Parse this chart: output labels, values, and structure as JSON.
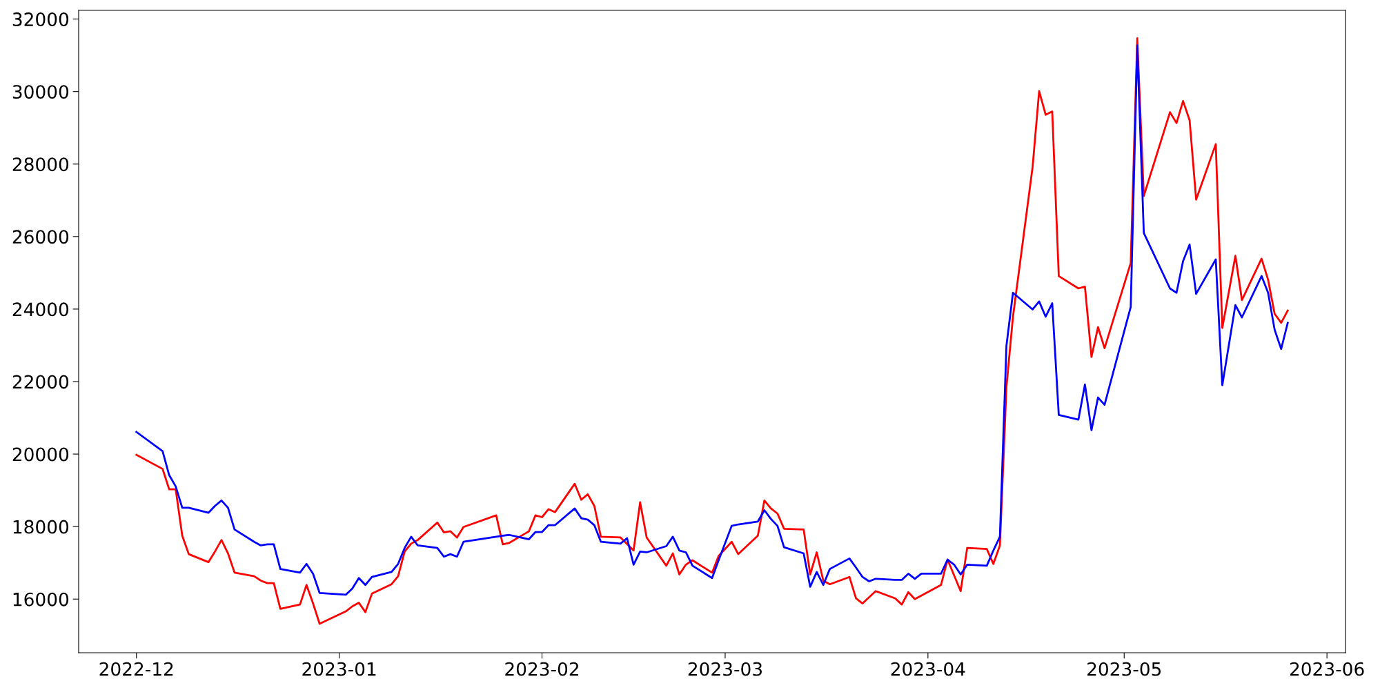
{
  "chart_data": {
    "type": "line",
    "xlim": [
      "2022-11-22T04:00",
      "2023-06-03T20:00"
    ],
    "ylim": [
      14520,
      32240
    ],
    "xticks": [
      "2022-12",
      "2023-01",
      "2023-02",
      "2023-03",
      "2023-04",
      "2023-05",
      "2023-06"
    ],
    "yticks": [
      16000,
      18000,
      20000,
      22000,
      24000,
      26000,
      28000,
      30000,
      32000
    ],
    "grid": false,
    "marker": "none",
    "line_style": "solid",
    "series": [
      {
        "color": "#0000ff",
        "x": [
          "2022-12-01",
          "2022-12-05",
          "2022-12-06",
          "2022-12-07",
          "2022-12-08",
          "2022-12-09",
          "2022-12-12",
          "2022-12-13",
          "2022-12-14",
          "2022-12-15",
          "2022-12-16",
          "2022-12-19",
          "2022-12-20",
          "2022-12-21",
          "2022-12-22",
          "2022-12-23",
          "2022-12-26",
          "2022-12-27",
          "2022-12-28",
          "2022-12-29",
          "2023-01-02",
          "2023-01-03",
          "2023-01-04",
          "2023-01-05",
          "2023-01-06",
          "2023-01-09",
          "2023-01-10",
          "2023-01-11",
          "2023-01-12",
          "2023-01-13",
          "2023-01-16",
          "2023-01-17",
          "2023-01-18",
          "2023-01-19",
          "2023-01-20",
          "2023-01-25",
          "2023-01-26",
          "2023-01-27",
          "2023-01-30",
          "2023-01-31",
          "2023-02-01",
          "2023-02-02",
          "2023-02-03",
          "2023-02-06",
          "2023-02-07",
          "2023-02-08",
          "2023-02-09",
          "2023-02-10",
          "2023-02-13",
          "2023-02-14",
          "2023-02-15",
          "2023-02-16",
          "2023-02-17",
          "2023-02-20",
          "2023-02-21",
          "2023-02-22",
          "2023-02-23",
          "2023-02-24",
          "2023-02-27",
          "2023-02-28",
          "2023-03-02",
          "2023-03-03",
          "2023-03-06",
          "2023-03-07",
          "2023-03-08",
          "2023-03-09",
          "2023-03-10",
          "2023-03-13",
          "2023-03-14",
          "2023-03-15",
          "2023-03-16",
          "2023-03-17",
          "2023-03-20",
          "2023-03-21",
          "2023-03-22",
          "2023-03-23",
          "2023-03-24",
          "2023-03-27",
          "2023-03-28",
          "2023-03-29",
          "2023-03-30",
          "2023-03-31",
          "2023-04-03",
          "2023-04-04",
          "2023-04-05",
          "2023-04-06",
          "2023-04-07",
          "2023-04-10",
          "2023-04-11",
          "2023-04-12",
          "2023-04-13",
          "2023-04-14",
          "2023-04-17",
          "2023-04-18",
          "2023-04-19",
          "2023-04-20",
          "2023-04-21",
          "2023-04-24",
          "2023-04-25",
          "2023-04-26",
          "2023-04-27",
          "2023-04-28",
          "2023-05-02",
          "2023-05-03",
          "2023-05-04",
          "2023-05-08",
          "2023-05-09",
          "2023-05-10",
          "2023-05-11",
          "2023-05-12",
          "2023-05-15",
          "2023-05-16",
          "2023-05-18",
          "2023-05-19",
          "2023-05-22",
          "2023-05-23",
          "2023-05-24",
          "2023-05-25",
          "2023-05-26"
        ],
        "values": [
          20610,
          20080,
          19420,
          19110,
          18520,
          18520,
          18380,
          18570,
          18720,
          18520,
          17920,
          17580,
          17480,
          17510,
          17510,
          16830,
          16730,
          16970,
          16700,
          16170,
          16120,
          16290,
          16580,
          16390,
          16610,
          16750,
          16970,
          17410,
          17720,
          17480,
          17410,
          17170,
          17240,
          17170,
          17580,
          17720,
          17750,
          17770,
          17650,
          17850,
          17850,
          18040,
          18040,
          18500,
          18230,
          18190,
          18040,
          17580,
          17530,
          17680,
          16950,
          17310,
          17290,
          17460,
          17720,
          17340,
          17290,
          16920,
          16580,
          17070,
          18020,
          18060,
          18140,
          18450,
          18210,
          18020,
          17430,
          17260,
          16340,
          16750,
          16390,
          16830,
          17120,
          16870,
          16610,
          16490,
          16560,
          16530,
          16530,
          16700,
          16560,
          16700,
          16700,
          17090,
          16950,
          16680,
          16950,
          16920,
          17340,
          17720,
          22990,
          24450,
          23990,
          24210,
          23790,
          24160,
          21080,
          20950,
          21920,
          20660,
          21560,
          21360,
          24060,
          31270,
          26100,
          24570,
          24450,
          25320,
          25780,
          24420,
          25370,
          21900,
          24110,
          23770,
          24910,
          24450,
          23430,
          22900,
          23620
        ]
      },
      {
        "color": "#ff0000",
        "x": [
          "2022-12-01",
          "2022-12-05",
          "2022-12-06",
          "2022-12-07",
          "2022-12-08",
          "2022-12-09",
          "2022-12-12",
          "2022-12-13",
          "2022-12-14",
          "2022-12-15",
          "2022-12-16",
          "2022-12-19",
          "2022-12-20",
          "2022-12-21",
          "2022-12-22",
          "2022-12-23",
          "2022-12-26",
          "2022-12-27",
          "2022-12-28",
          "2022-12-29",
          "2023-01-02",
          "2023-01-03",
          "2023-01-04",
          "2023-01-05",
          "2023-01-06",
          "2023-01-09",
          "2023-01-10",
          "2023-01-11",
          "2023-01-12",
          "2023-01-13",
          "2023-01-16",
          "2023-01-17",
          "2023-01-18",
          "2023-01-19",
          "2023-01-20",
          "2023-01-25",
          "2023-01-26",
          "2023-01-27",
          "2023-01-30",
          "2023-01-31",
          "2023-02-01",
          "2023-02-02",
          "2023-02-03",
          "2023-02-06",
          "2023-02-07",
          "2023-02-08",
          "2023-02-09",
          "2023-02-10",
          "2023-02-13",
          "2023-02-15",
          "2023-02-16",
          "2023-02-17",
          "2023-02-20",
          "2023-02-21",
          "2023-02-22",
          "2023-02-23",
          "2023-02-24",
          "2023-02-27",
          "2023-02-28",
          "2023-03-02",
          "2023-03-03",
          "2023-03-06",
          "2023-03-07",
          "2023-03-08",
          "2023-03-09",
          "2023-03-10",
          "2023-03-13",
          "2023-03-14",
          "2023-03-15",
          "2023-03-16",
          "2023-03-17",
          "2023-03-20",
          "2023-03-21",
          "2023-03-22",
          "2023-03-24",
          "2023-03-27",
          "2023-03-28",
          "2023-03-29",
          "2023-03-30",
          "2023-04-03",
          "2023-04-04",
          "2023-04-06",
          "2023-04-07",
          "2023-04-10",
          "2023-04-11",
          "2023-04-12",
          "2023-04-13",
          "2023-04-14",
          "2023-04-17",
          "2023-04-18",
          "2023-04-19",
          "2023-04-20",
          "2023-04-21",
          "2023-04-24",
          "2023-04-25",
          "2023-04-26",
          "2023-04-27",
          "2023-04-28",
          "2023-05-02",
          "2023-05-03",
          "2023-05-04",
          "2023-05-08",
          "2023-05-09",
          "2023-05-10",
          "2023-05-11",
          "2023-05-12",
          "2023-05-15",
          "2023-05-16",
          "2023-05-18",
          "2023-05-19",
          "2023-05-22",
          "2023-05-23",
          "2023-05-24",
          "2023-05-25",
          "2023-05-26"
        ],
        "values": [
          19980,
          19590,
          19030,
          19030,
          17750,
          17240,
          17020,
          17310,
          17630,
          17260,
          16730,
          16630,
          16510,
          16440,
          16440,
          15730,
          15850,
          16390,
          15880,
          15320,
          15660,
          15800,
          15900,
          15640,
          16150,
          16410,
          16630,
          17310,
          17530,
          17630,
          18110,
          17840,
          17870,
          17700,
          17990,
          18310,
          17510,
          17550,
          17870,
          18310,
          18260,
          18480,
          18400,
          19180,
          18740,
          18890,
          18570,
          17720,
          17700,
          17340,
          18670,
          17700,
          16920,
          17260,
          16680,
          16950,
          17070,
          16730,
          17190,
          17580,
          17240,
          17750,
          18720,
          18500,
          18360,
          17940,
          17920,
          16680,
          17290,
          16510,
          16410,
          16610,
          16020,
          15880,
          16220,
          16020,
          15850,
          16190,
          16000,
          16390,
          17090,
          16220,
          17410,
          17380,
          16970,
          17480,
          21850,
          23790,
          27920,
          30010,
          29360,
          29450,
          24910,
          24570,
          24620,
          22680,
          23500,
          22920,
          25270,
          31470,
          27120,
          29430,
          29130,
          29740,
          29210,
          27020,
          28550,
          23480,
          25470,
          24250,
          25390,
          24810,
          23870,
          23620,
          23960
        ]
      }
    ]
  }
}
